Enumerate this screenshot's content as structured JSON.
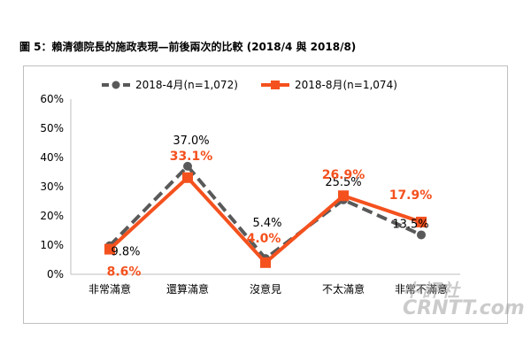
{
  "caption": "圖 5：賴清德院長的施政表現—前後兩次的比較 (2018/4 與 2018/8)",
  "watermark": {
    "top": "中評社",
    "bottom": "CRNTT.com"
  },
  "chart_data": {
    "type": "line",
    "title": "",
    "xlabel": "",
    "ylabel": "",
    "categories": [
      "非常滿意",
      "還算滿意",
      "沒意見",
      "不太滿意",
      "非常不滿意"
    ],
    "ylim": [
      0,
      60
    ],
    "yticks": [
      "0%",
      "10%",
      "20%",
      "30%",
      "40%",
      "50%",
      "60%"
    ],
    "grid": false,
    "legend_position": "top-center",
    "series": [
      {
        "name": "2018-4月(n=1,072)",
        "values": [
          9.8,
          37.0,
          5.4,
          25.5,
          13.5
        ],
        "labels": [
          "9.8%",
          "37.0%",
          "5.4%",
          "25.5%",
          "13.5%"
        ],
        "color": "#595959",
        "style": "dashed"
      },
      {
        "name": "2018-8月(n=1,074)",
        "values": [
          8.6,
          33.1,
          4.0,
          26.9,
          17.9
        ],
        "labels": [
          "8.6%",
          "33.1%",
          "4.0%",
          "26.9%",
          "17.9%"
        ],
        "color": "#f4511e",
        "style": "solid"
      }
    ]
  }
}
